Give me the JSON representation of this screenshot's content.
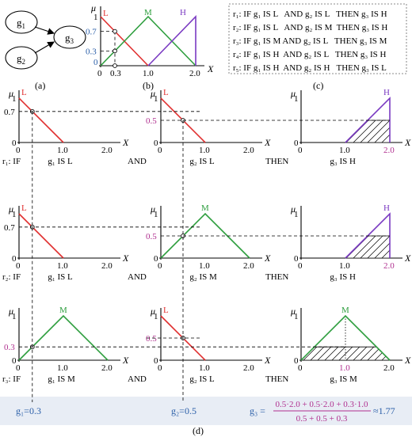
{
  "colors": {
    "L": "#e03030",
    "M": "#2e9e3e",
    "H": "#7a3ac2",
    "input_blue": "#2a5ea8",
    "magenta": "#b0308f",
    "bottom_band": "#e8edf5"
  },
  "panel_a": {
    "node_g1": "g",
    "node_g1_sub": "1",
    "node_g2": "g",
    "node_g2_sub": "2",
    "node_g3": "g",
    "node_g3_sub": "3",
    "caption": "(a)"
  },
  "panel_b": {
    "caption": "(b)",
    "mu": "μ",
    "x_axis": "X",
    "label_L": "L",
    "label_M": "M",
    "label_H": "H",
    "tick_1": "1",
    "tick_07": "0.7",
    "tick_03": "0.3",
    "tick_0": "0",
    "xtick_0": "0",
    "xtick_03": "0.3",
    "xtick_10": "1.0",
    "xtick_20": "2.0"
  },
  "panel_c": {
    "caption": "(c)",
    "rules": [
      "r₁: IF g₁ IS L   AND g₂ IS L   THEN g₃ IS H",
      "r₂: IF g₁ IS L   AND g₂ IS M  THEN g₃ IS H",
      "r₃: IF g₁ IS M AND g₂ IS L   THEN g₃ IS M",
      "r₄: IF g₁ IS H  AND g₂ IS L   THEN g₃ IS H",
      "r₅: IF g₁ IS H  AND g₂ IS H   THEN g₃ IS L"
    ]
  },
  "panel_d": {
    "caption": "(d)",
    "rows": [
      {
        "prefix": "r₁: IF",
        "and": "AND",
        "then": "THEN",
        "cap1": "g₁ IS L",
        "cap2": "g₂ IS L",
        "cap3": "g₃ IS H",
        "mf1": "L",
        "mf2": "L",
        "mf3": "H",
        "y1_ticks": [
          "1",
          "0.7",
          "0"
        ],
        "y2_ticks": [
          "1",
          "0.5",
          "0"
        ],
        "y3_ticks": [
          "1",
          "0"
        ],
        "x1_ticks": [
          "0",
          "1.0",
          "2.0"
        ],
        "x2_ticks": [
          "0",
          "1.0",
          "2.0"
        ],
        "x3_ticks": [
          "0",
          "1.0",
          "2.0"
        ],
        "firing": 0.5
      },
      {
        "prefix": "r₂: IF",
        "and": "AND",
        "then": "THEN",
        "cap1": "g₁ IS L",
        "cap2": "g₂ IS M",
        "cap3": "g₃ IS H",
        "mf1": "L",
        "mf2": "M",
        "mf3": "H",
        "y1_ticks": [
          "1",
          "0.7",
          "0"
        ],
        "y2_ticks": [
          "1",
          "0.5",
          "0"
        ],
        "y3_ticks": [
          "1",
          "0"
        ],
        "x1_ticks": [
          "0",
          "1.0",
          "2.0"
        ],
        "x2_ticks": [
          "0",
          "1.0",
          "2.0"
        ],
        "x3_ticks": [
          "0",
          "1.0",
          "2.0"
        ],
        "firing": 0.5
      },
      {
        "prefix": "r₃: IF",
        "and": "AND",
        "then": "THEN",
        "cap1": "g₁ IS M",
        "cap2": "g₂ IS L",
        "cap3": "g₃ IS M",
        "mf1": "M",
        "mf2": "L",
        "mf3": "M",
        "y1_ticks": [
          "1",
          "0.3",
          "0"
        ],
        "y2_ticks": [
          "1",
          "0.5",
          "0"
        ],
        "y3_ticks": [
          "1",
          "0"
        ],
        "x1_ticks": [
          "0",
          "1.0",
          "2.0"
        ],
        "x2_ticks": [
          "0",
          "1.0",
          "2.0"
        ],
        "x3_ticks": [
          "0",
          "1.0",
          "2.0"
        ],
        "firing": 0.3
      }
    ],
    "mu": "μ",
    "x_axis": "X",
    "g1_input": "g₁=0.3",
    "g2_input": "g₂=0.5",
    "g3_lhs": "g₃ =",
    "g3_numerator": "0.5·2.0 + 0.5·2.0 + 0.3·1.0",
    "g3_denominator": "0.5 + 0.5 + 0.3",
    "g3_result": "≈1.77"
  }
}
